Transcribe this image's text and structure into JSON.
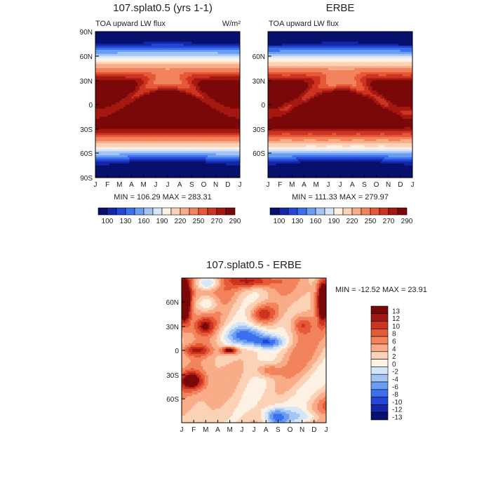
{
  "months": [
    "J",
    "F",
    "M",
    "A",
    "M",
    "J",
    "J",
    "A",
    "S",
    "O",
    "N",
    "D",
    "J"
  ],
  "lat_labels": [
    "90N",
    "60N",
    "30N",
    "0",
    "30S",
    "60S",
    "90S"
  ],
  "lat_labels_diff": [
    "60N",
    "30N",
    "0",
    "30S",
    "60S"
  ],
  "panel1": {
    "title": "107.splat0.5 (yrs 1-1)",
    "variable": "TOA upward LW flux",
    "units": "W/m²",
    "minmax": "MIN = 106.29 MAX = 283.31"
  },
  "panel2": {
    "title": "ERBE",
    "variable": "TOA upward LW flux",
    "minmax": "MIN = 111.33 MAX = 279.97"
  },
  "panel3": {
    "title": "107.splat0.5 - ERBE",
    "minmax": "MIN = -12.52 MAX =  23.91"
  },
  "colorbar_abs": {
    "labels": [
      "100",
      "130",
      "160",
      "190",
      "220",
      "250",
      "270",
      "290"
    ],
    "colors": [
      "#08106e",
      "#1426a8",
      "#2346d6",
      "#3a70ee",
      "#6a9cf2",
      "#a4c4f6",
      "#d6e6fa",
      "#fdf1e4",
      "#fcd2b6",
      "#f9ac88",
      "#f2835c",
      "#e65836",
      "#cc3320",
      "#a51812",
      "#7a0808"
    ]
  },
  "colorbar_diff": {
    "labels": [
      "13",
      "12",
      "10",
      "8",
      "6",
      "4",
      "2",
      "0",
      "-2",
      "-4",
      "-6",
      "-8",
      "-10",
      "-12",
      "-13"
    ],
    "colors": [
      "#7a0808",
      "#a51812",
      "#cc3320",
      "#e65836",
      "#f2835c",
      "#f9ac88",
      "#fcd2b6",
      "#fdf1e4",
      "#d6e6fa",
      "#a4c4f6",
      "#6a9cf2",
      "#3a70ee",
      "#2346d6",
      "#1426a8",
      "#08106e"
    ]
  },
  "chart_data": [
    {
      "type": "heatmap",
      "title": "107.splat0.5 (yrs 1-1)",
      "subtitle": "TOA upward LW flux",
      "units": "W/m²",
      "x": [
        "J",
        "F",
        "M",
        "A",
        "M",
        "J",
        "J",
        "A",
        "S",
        "O",
        "N",
        "D",
        "J"
      ],
      "y_range": [
        -90,
        90
      ],
      "levels": [
        100,
        130,
        160,
        190,
        220,
        250,
        270,
        290
      ],
      "min": 106.29,
      "max": 283.31
    },
    {
      "type": "heatmap",
      "title": "ERBE",
      "subtitle": "TOA upward LW flux",
      "x": [
        "J",
        "F",
        "M",
        "A",
        "M",
        "J",
        "J",
        "A",
        "S",
        "O",
        "N",
        "D",
        "J"
      ],
      "y_range": [
        -90,
        90
      ],
      "levels": [
        100,
        130,
        160,
        190,
        220,
        250,
        270,
        290
      ],
      "min": 111.33,
      "max": 279.97
    },
    {
      "type": "heatmap",
      "title": "107.splat0.5 - ERBE",
      "x": [
        "J",
        "F",
        "M",
        "A",
        "M",
        "J",
        "J",
        "A",
        "S",
        "O",
        "N",
        "D",
        "J"
      ],
      "y_range": [
        -90,
        90
      ],
      "levels": [
        -13,
        -12,
        -10,
        -8,
        -6,
        -4,
        -2,
        0,
        2,
        4,
        6,
        8,
        10,
        12,
        13
      ],
      "min": -12.52,
      "max": 23.91
    }
  ]
}
